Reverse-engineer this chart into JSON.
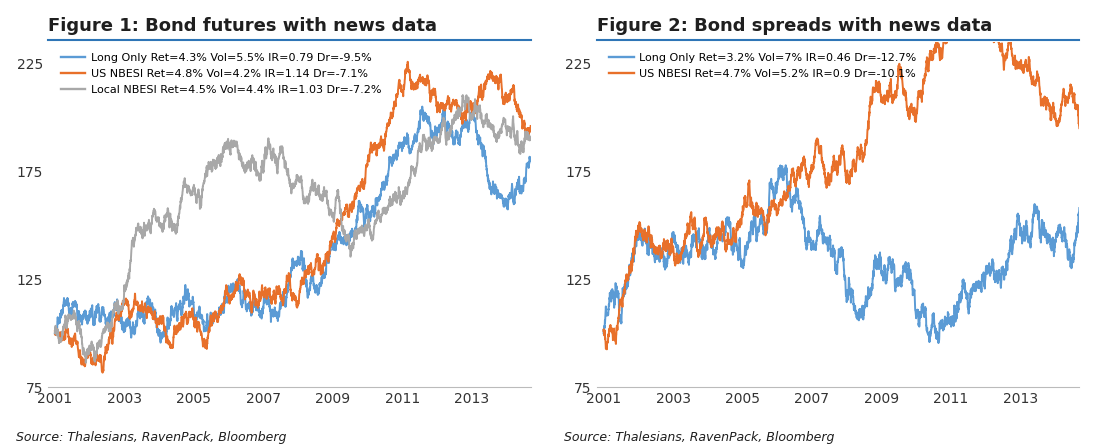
{
  "fig1_title": "Figure 1: Bond futures with news data",
  "fig2_title": "Figure 2: Bond spreads with news data",
  "source_text": "Source: Thalesians, RavenPack, Bloomberg",
  "ylim": [
    75,
    235
  ],
  "yticks": [
    75,
    125,
    175,
    225
  ],
  "start_year": 2001,
  "end_year": 2014.7,
  "xtick_years": [
    2001,
    2003,
    2005,
    2007,
    2009,
    2011,
    2013
  ],
  "fig1_legend": [
    "Long Only Ret=4.3% Vol=5.5% IR=0.79 Dr=-9.5%",
    "US NBESI Ret=4.8% Vol=4.2% IR=1.14 Dr=-7.1%",
    "Local NBESI Ret=4.5% Vol=4.4% IR=1.03 Dr=-7.2%"
  ],
  "fig2_legend": [
    "Long Only Ret=3.2% Vol=7% IR=0.46 Dr=-12.7%",
    "US NBESI Ret=4.7% Vol=5.2% IR=0.9 Dr=-10.1%"
  ],
  "fig1_colors": [
    "#5B9BD5",
    "#E8702A",
    "#A8A8A8"
  ],
  "fig2_colors": [
    "#5B9BD5",
    "#E8702A"
  ],
  "bg_color": "#FFFFFF",
  "title_color": "#1F1F1F",
  "line_width": 1.4,
  "title_fontsize": 13,
  "legend_fontsize": 8.0,
  "tick_fontsize": 10,
  "source_fontsize": 9,
  "n_points": 3500
}
